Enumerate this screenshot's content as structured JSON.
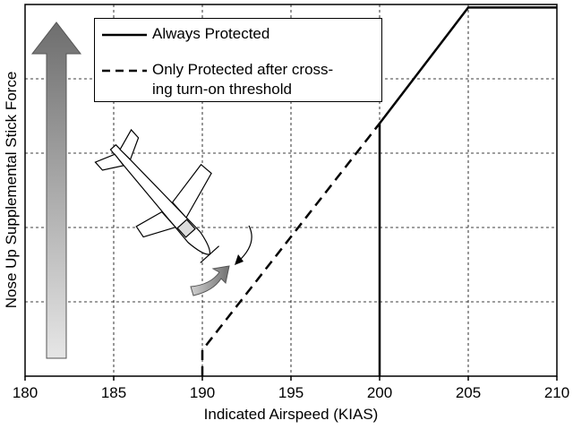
{
  "chart_data": {
    "type": "line",
    "x_label": "Indicated Airspeed (KIAS)",
    "y_label": "Nose Up Supplemental Stick Force",
    "xlim": [
      180,
      210
    ],
    "ylim": [
      0,
      5
    ],
    "xticks": [
      180,
      185,
      190,
      195,
      200,
      205,
      210
    ],
    "yticks": [
      1,
      2,
      3,
      4
    ],
    "grid": true,
    "series": [
      {
        "name": "Always Protected",
        "color": "#000000",
        "dash": false,
        "x": [
          200,
          200,
          205,
          210
        ],
        "values": [
          0,
          3.4,
          4.96,
          4.96
        ]
      },
      {
        "name": "Only Protected after cross-\ning turn-on threshold",
        "color": "#000000",
        "dash": true,
        "x": [
          190,
          190,
          200
        ],
        "values": [
          0,
          0.35,
          3.4
        ]
      }
    ]
  }
}
